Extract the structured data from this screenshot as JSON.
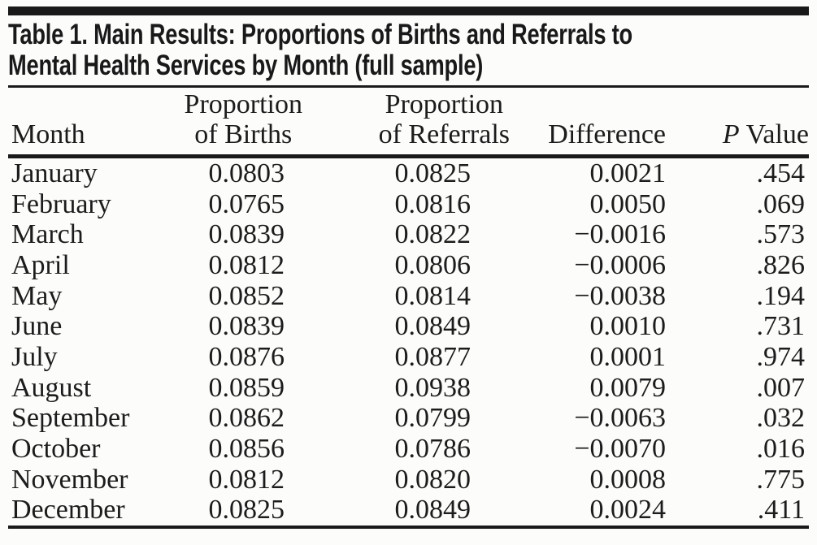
{
  "title": {
    "line1": "Table 1. Main Results: Proportions of Births and Referrals to",
    "line2": "Mental Health Services by Month (full sample)"
  },
  "table": {
    "headers": {
      "month": "Month",
      "births_line1": "Proportion",
      "births_line2": "of Births",
      "referrals_line1": "Proportion",
      "referrals_line2": "of Referrals",
      "difference": "Difference",
      "p_italic": "P",
      "p_rest": " Value"
    },
    "rows": [
      {
        "month": "January",
        "births": "0.0803",
        "referrals": "0.0825",
        "difference": "0.0021",
        "p_value": ".454"
      },
      {
        "month": "February",
        "births": "0.0765",
        "referrals": "0.0816",
        "difference": "0.0050",
        "p_value": ".069"
      },
      {
        "month": "March",
        "births": "0.0839",
        "referrals": "0.0822",
        "difference": "−0.0016",
        "p_value": ".573"
      },
      {
        "month": "April",
        "births": "0.0812",
        "referrals": "0.0806",
        "difference": "−0.0006",
        "p_value": ".826"
      },
      {
        "month": "May",
        "births": "0.0852",
        "referrals": "0.0814",
        "difference": "−0.0038",
        "p_value": ".194"
      },
      {
        "month": "June",
        "births": "0.0839",
        "referrals": "0.0849",
        "difference": "0.0010",
        "p_value": ".731"
      },
      {
        "month": "July",
        "births": "0.0876",
        "referrals": "0.0877",
        "difference": "0.0001",
        "p_value": ".974"
      },
      {
        "month": "August",
        "births": "0.0859",
        "referrals": "0.0938",
        "difference": "0.0079",
        "p_value": ".007"
      },
      {
        "month": "September",
        "births": "0.0862",
        "referrals": "0.0799",
        "difference": "−0.0063",
        "p_value": ".032"
      },
      {
        "month": "October",
        "births": "0.0856",
        "referrals": "0.0786",
        "difference": "−0.0070",
        "p_value": ".016"
      },
      {
        "month": "November",
        "births": "0.0812",
        "referrals": "0.0820",
        "difference": "0.0008",
        "p_value": ".775"
      },
      {
        "month": "December",
        "births": "0.0825",
        "referrals": "0.0849",
        "difference": "0.0024",
        "p_value": ".411"
      }
    ]
  },
  "colors": {
    "rule": "#1a1a1a",
    "text": "#1c1c1c",
    "background": "#fcfcfb"
  }
}
